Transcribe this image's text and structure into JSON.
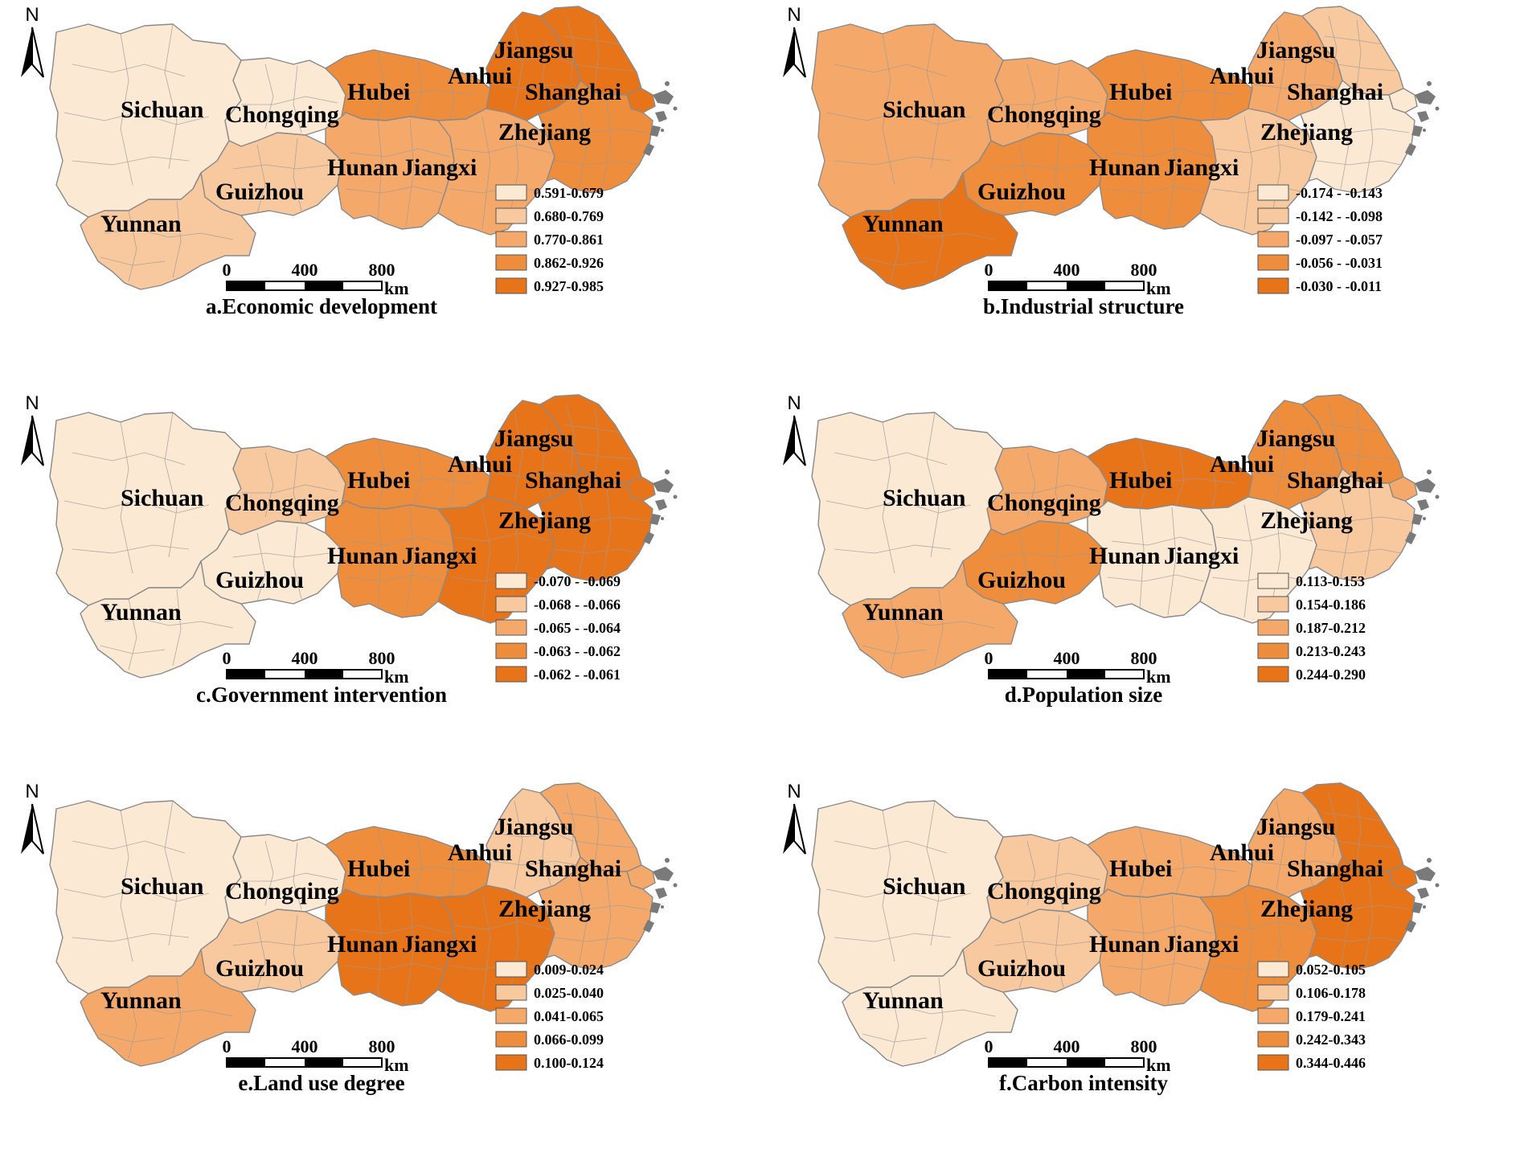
{
  "north_label": "N",
  "scale": {
    "ticks": [
      "0",
      "400",
      "800"
    ],
    "unit": "km"
  },
  "colors": [
    "#fbe9d4",
    "#f8c99e",
    "#f4a96a",
    "#ee8d3c",
    "#e8741a"
  ],
  "province_names": {
    "sichuan": "Sichuan",
    "chongqing": "Chongqing",
    "hubei": "Hubei",
    "anhui": "Anhui",
    "jiangsu": "Jiangsu",
    "shanghai": "Shanghai",
    "zhejiang": "Zhejiang",
    "hunan": "Hunan",
    "jiangxi": "Jiangxi",
    "guizhou": "Guizhou",
    "yunnan": "Yunnan"
  },
  "panels": [
    {
      "id": "a",
      "caption": "a.Economic development",
      "legend": [
        "0.591-0.679",
        "0.680-0.769",
        "0.770-0.861",
        "0.862-0.926",
        "0.927-0.985"
      ],
      "classes": {
        "sichuan": 0,
        "chongqing": 0,
        "guizhou": 1,
        "yunnan": 1,
        "hunan": 2,
        "jiangxi": 2,
        "hubei": 3,
        "zhejiang": 3,
        "anhui": 4,
        "jiangsu": 4,
        "shanghai": 4
      }
    },
    {
      "id": "b",
      "caption": "b.Industrial structure",
      "legend": [
        "-0.174 - -0.143",
        "-0.142 - -0.098",
        "-0.097 - -0.057",
        "-0.056 - -0.031",
        "-0.030 - -0.011"
      ],
      "classes": {
        "sichuan": 2,
        "chongqing": 2,
        "guizhou": 3,
        "yunnan": 4,
        "hunan": 3,
        "jiangxi": 1,
        "hubei": 3,
        "zhejiang": 0,
        "anhui": 2,
        "jiangsu": 1,
        "shanghai": 0
      }
    },
    {
      "id": "c",
      "caption": "c.Government intervention",
      "legend": [
        "-0.070 - -0.069",
        "-0.068 - -0.066",
        "-0.065 - -0.064",
        "-0.063 - -0.062",
        "-0.062 - -0.061"
      ],
      "classes": {
        "sichuan": 0,
        "chongqing": 1,
        "guizhou": 0,
        "yunnan": 0,
        "hunan": 3,
        "jiangxi": 4,
        "hubei": 3,
        "zhejiang": 4,
        "anhui": 4,
        "jiangsu": 4,
        "shanghai": 4
      }
    },
    {
      "id": "d",
      "caption": "d.Population size",
      "legend": [
        "0.113-0.153",
        "0.154-0.186",
        "0.187-0.212",
        "0.213-0.243",
        "0.244-0.290"
      ],
      "classes": {
        "sichuan": 0,
        "chongqing": 2,
        "guizhou": 3,
        "yunnan": 2,
        "hunan": 0,
        "jiangxi": 0,
        "hubei": 4,
        "zhejiang": 1,
        "anhui": 3,
        "jiangsu": 3,
        "shanghai": 2
      }
    },
    {
      "id": "e",
      "caption": "e.Land use degree",
      "legend": [
        "0.009-0.024",
        "0.025-0.040",
        "0.041-0.065",
        "0.066-0.099",
        "0.100-0.124"
      ],
      "classes": {
        "sichuan": 0,
        "chongqing": 0,
        "guizhou": 1,
        "yunnan": 2,
        "hunan": 4,
        "jiangxi": 4,
        "hubei": 3,
        "zhejiang": 2,
        "anhui": 1,
        "jiangsu": 2,
        "shanghai": 2
      }
    },
    {
      "id": "f",
      "caption": "f.Carbon intensity",
      "legend": [
        "0.052-0.105",
        "0.106-0.178",
        "0.179-0.241",
        "0.242-0.343",
        "0.344-0.446"
      ],
      "classes": {
        "sichuan": 0,
        "chongqing": 1,
        "guizhou": 1,
        "yunnan": 0,
        "hunan": 2,
        "jiangxi": 3,
        "hubei": 2,
        "zhejiang": 4,
        "anhui": 2,
        "jiangsu": 4,
        "shanghai": 4
      }
    }
  ]
}
